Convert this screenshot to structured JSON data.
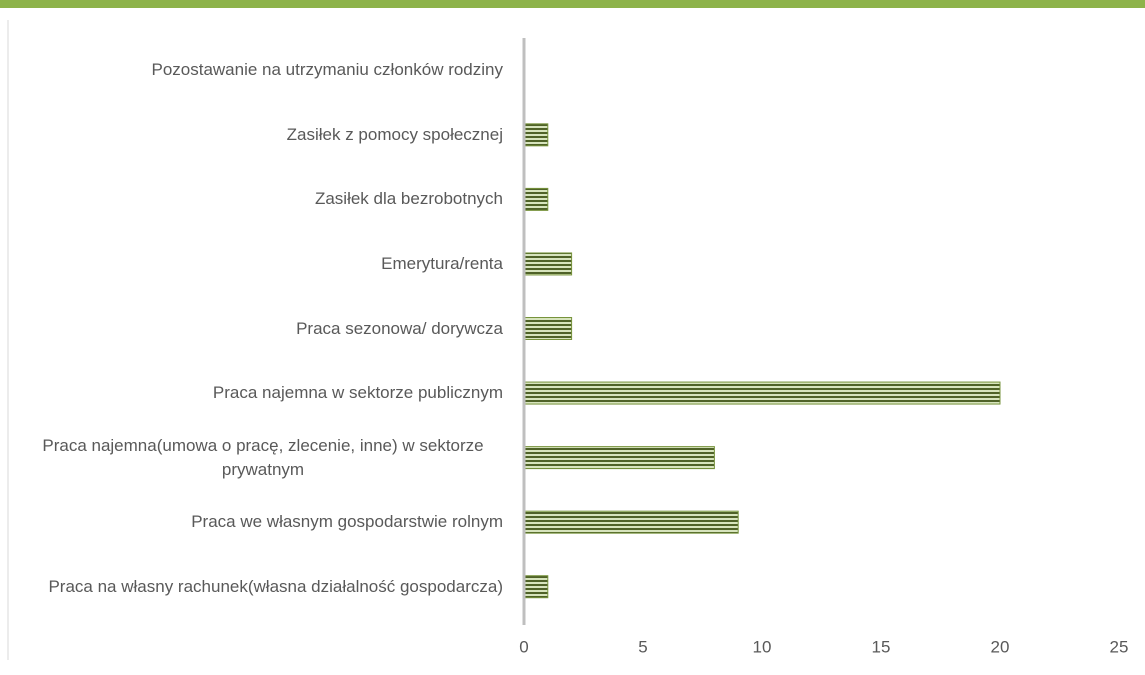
{
  "chart_data": {
    "type": "barh",
    "categories": [
      "Pozostawanie na utrzymaniu członków rodziny",
      "Zasiłek z pomocy społecznej",
      "Zasiłek dla bezrobotnych",
      "Emerytura/renta",
      "Praca sezonowa/ dorywcza",
      "Praca najemna w sektorze publicznym",
      "Praca najemna(umowa o pracę, zlecenie, inne) w sektorze prywatnym",
      "Praca we własnym gospodarstwie rolnym",
      "Praca na własny rachunek(własna działalność gospodarcza)"
    ],
    "values": [
      0,
      1,
      1,
      2,
      2,
      20,
      8,
      9,
      1
    ],
    "color": "#77933c",
    "xlim": [
      0,
      25
    ],
    "xticks": [
      0,
      5,
      10,
      15,
      20,
      25
    ],
    "grid": false
  }
}
